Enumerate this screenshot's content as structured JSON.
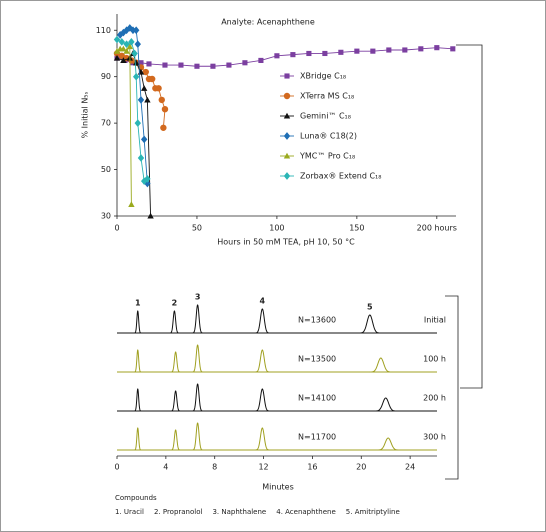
{
  "chart_data": [
    {
      "type": "line",
      "title": "Analyte:  Acenaphthene",
      "x_label": "Hours in 50 mM TEA, pH 10, 50 °C",
      "y_label": "% Initial N₅ₛ",
      "xlim": [
        0,
        212
      ],
      "ylim": [
        30,
        117
      ],
      "xticks": [
        0,
        50,
        100,
        150,
        {
          "value": 200,
          "label": "200 hours"
        }
      ],
      "yticks": [
        30,
        50,
        70,
        90,
        110
      ],
      "series": [
        {
          "name": "XBridge C₁₈",
          "color": "#7b3fa0",
          "marker": "square",
          "x": [
            0,
            5,
            10,
            15,
            20,
            30,
            40,
            50,
            60,
            70,
            80,
            90,
            100,
            110,
            120,
            130,
            140,
            150,
            160,
            170,
            180,
            190,
            200,
            210
          ],
          "values": [
            98,
            97,
            96,
            96,
            95.5,
            95,
            95,
            94.5,
            94.5,
            95,
            96,
            97,
            99,
            99.5,
            100,
            100,
            100.5,
            101,
            101,
            101.5,
            101.5,
            102,
            102.5,
            102
          ]
        },
        {
          "name": "XTerra MS C₁₈",
          "color": "#d2691e",
          "marker": "circle",
          "x": [
            0,
            3,
            6,
            9,
            12,
            15,
            18,
            20,
            22,
            24,
            26,
            28,
            30,
            29
          ],
          "values": [
            100,
            99,
            98,
            97,
            96,
            94,
            92,
            89,
            89,
            85,
            85,
            80,
            76,
            68
          ]
        },
        {
          "name": "Gemini™ C₁₈",
          "color": "#111111",
          "marker": "triangle",
          "x": [
            0,
            4,
            8,
            10,
            12,
            15,
            17,
            19,
            21
          ],
          "values": [
            98,
            97,
            98,
            100,
            96,
            92,
            85,
            80,
            30
          ]
        },
        {
          "name": "Luna® C18(2)",
          "color": "#1e6eb4",
          "marker": "diamond",
          "x": [
            2,
            4,
            6,
            8,
            10,
            12,
            13,
            15,
            17,
            19
          ],
          "values": [
            108,
            109,
            110,
            111,
            110,
            110,
            104,
            80,
            63,
            44
          ]
        },
        {
          "name": "YMC™ Pro C₁₈",
          "color": "#9aaa1e",
          "marker": "triangle",
          "x": [
            0,
            2,
            4,
            6,
            8,
            9
          ],
          "values": [
            101,
            102,
            102,
            101,
            103,
            35
          ]
        },
        {
          "name": "Zorbax® Extend C₁₈",
          "color": "#2ab5b5",
          "marker": "diamond",
          "x": [
            0,
            3,
            6,
            9,
            11,
            12,
            13,
            15,
            17,
            19
          ],
          "values": [
            106,
            105,
            104,
            105,
            100,
            90,
            70,
            55,
            45,
            46
          ]
        }
      ]
    },
    {
      "type": "chromatogram",
      "x_label": "Minutes",
      "xlim": [
        0,
        26.2
      ],
      "xticks": [
        0,
        4,
        8,
        12,
        16,
        20,
        24
      ],
      "peak_labels": [
        "1",
        "2",
        "3",
        "4",
        "5"
      ],
      "series": [
        {
          "name": "Initial",
          "label": "N=13600",
          "color": "#111111",
          "values": [
            1.7,
            4.7,
            6.6,
            11.9,
            20.7
          ],
          "heights": [
            22,
            22,
            28,
            24,
            18
          ]
        },
        {
          "name": "100 h",
          "label": "N=13500",
          "color": "#a0a020",
          "values": [
            1.7,
            4.8,
            6.6,
            11.9,
            21.6
          ],
          "heights": [
            22,
            20,
            27,
            22,
            14
          ]
        },
        {
          "name": "200 h",
          "label": "N=14100",
          "color": "#111111",
          "values": [
            1.7,
            4.8,
            6.6,
            11.9,
            22.0
          ],
          "heights": [
            22,
            20,
            27,
            22,
            13
          ]
        },
        {
          "name": "300 h",
          "label": "N=11700",
          "color": "#a0a020",
          "values": [
            1.7,
            4.8,
            6.6,
            11.9,
            22.2
          ],
          "heights": [
            22,
            20,
            27,
            22,
            12
          ]
        }
      ]
    }
  ],
  "footer": {
    "heading": "Compounds",
    "items": [
      "1. Uracil",
      "2. Propranolol",
      "3. Naphthalene",
      "4. Acenaphthene",
      "5. Amitriptyline"
    ]
  }
}
